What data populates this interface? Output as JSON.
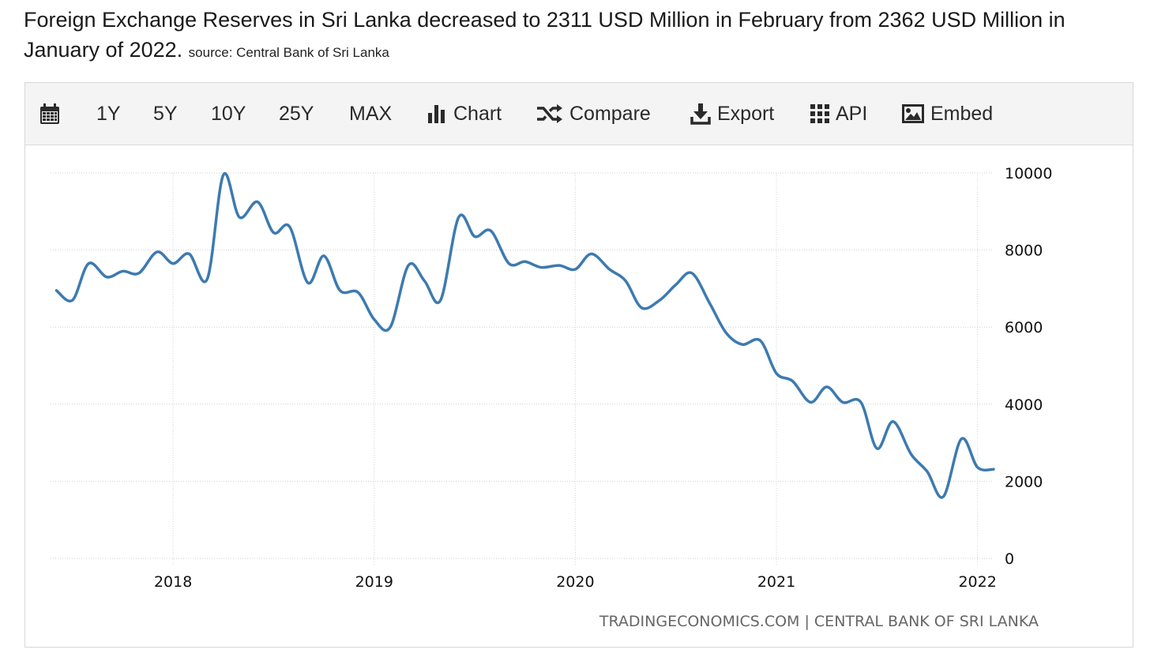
{
  "headline": {
    "text": "Foreign Exchange Reserves in Sri Lanka decreased to 2311 USD Million in February from 2362 USD Million in January of 2022.",
    "source": "source: Central Bank of Sri Lanka"
  },
  "toolbar": {
    "calendar_icon": "calendar-icon",
    "range_1y": "1Y",
    "range_5y": "5Y",
    "range_10y": "10Y",
    "range_25y": "25Y",
    "range_max": "MAX",
    "chart_label": "Chart",
    "compare_label": "Compare",
    "export_label": "Export",
    "api_label": "API",
    "embed_label": "Embed"
  },
  "chart_data": {
    "type": "line",
    "title": "",
    "xlabel": "",
    "ylabel": "",
    "ylim": [
      0,
      10000
    ],
    "yticks": [
      "0",
      "2000",
      "4000",
      "6000",
      "8000",
      "10000"
    ],
    "xticks": [
      "2018",
      "2019",
      "2020",
      "2021",
      "2022"
    ],
    "xlim": [
      2017.43,
      2022.08
    ],
    "grid": true,
    "legend": "none",
    "line_color": "#3d7ab0",
    "series": [
      {
        "x": [
          2017.42,
          2017.5,
          2017.58,
          2017.67,
          2017.75,
          2017.83,
          2017.92,
          2018.0,
          2018.08,
          2018.17,
          2018.25,
          2018.33,
          2018.42,
          2018.5,
          2018.58,
          2018.67,
          2018.75,
          2018.83,
          2018.92,
          2019.0,
          2019.08,
          2019.17,
          2019.25,
          2019.33,
          2019.42,
          2019.5,
          2019.58,
          2019.67,
          2019.75,
          2019.83,
          2019.92,
          2020.0,
          2020.08,
          2020.17,
          2020.25,
          2020.33,
          2020.42,
          2020.5,
          2020.58,
          2020.67,
          2020.75,
          2020.83,
          2020.92,
          2021.0,
          2021.08,
          2021.17,
          2021.25,
          2021.33,
          2021.42,
          2021.5,
          2021.58,
          2021.67,
          2021.75,
          2021.83,
          2021.92,
          2022.0,
          2022.08
        ],
        "values": [
          6950,
          6700,
          7650,
          7300,
          7450,
          7400,
          7950,
          7650,
          7900,
          7250,
          9950,
          8850,
          9250,
          8450,
          8600,
          7150,
          7850,
          6950,
          6900,
          6200,
          6000,
          7600,
          7200,
          6700,
          8850,
          8350,
          8500,
          7650,
          7700,
          7550,
          7600,
          7500,
          7900,
          7500,
          7200,
          6500,
          6700,
          7100,
          7400,
          6600,
          5850,
          5550,
          5650,
          4800,
          4600,
          4050,
          4450,
          4050,
          4050,
          2850,
          3550,
          2700,
          2250,
          1600,
          3100,
          2362,
          2311
        ]
      }
    ],
    "credit": "TRADINGECONOMICS.COM | CENTRAL BANK OF SRI LANKA"
  }
}
